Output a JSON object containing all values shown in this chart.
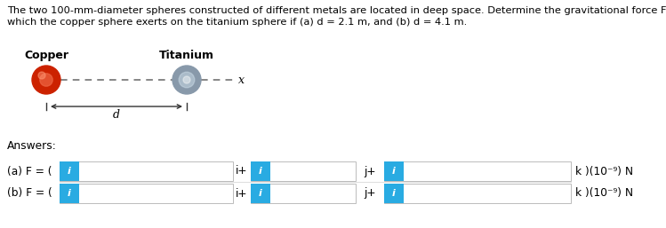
{
  "title_line1": "The two 100-mm-diameter spheres constructed of different metals are located in deep space. Determine the gravitational force F",
  "title_line2": "which the copper sphere exerts on the titanium sphere if (a) d = 2.1 m, and (b) d = 4.1 m.",
  "copper_label": "Copper",
  "titanium_label": "Titanium",
  "x_label": "x",
  "d_label": "d",
  "answers_label": "Answers:",
  "row_a_prefix": "(a) F = ( ",
  "row_b_prefix": "(b) F = ( ",
  "box_text": "i",
  "box_text_color": "#ffffff",
  "box_color": "#29ABE2",
  "bg_color": "#ffffff",
  "text_color": "#000000",
  "input_box_bg": "#ffffff",
  "input_box_border": "#bbbbbb",
  "copper_color_main": "#cc2200",
  "copper_color_hi": "#ee6644",
  "titanium_color_main": "#8899aa",
  "titanium_color_hi": "#ccdde8",
  "titanium_color_dark": "#556677",
  "dash_color": "#666666",
  "arrow_color": "#333333",
  "sep_color": "#dddddd",
  "font_size_title": 8.2,
  "font_size_body": 9.0,
  "font_size_label": 9.0,
  "font_size_answers": 8.8,
  "font_size_icon": 8.0
}
